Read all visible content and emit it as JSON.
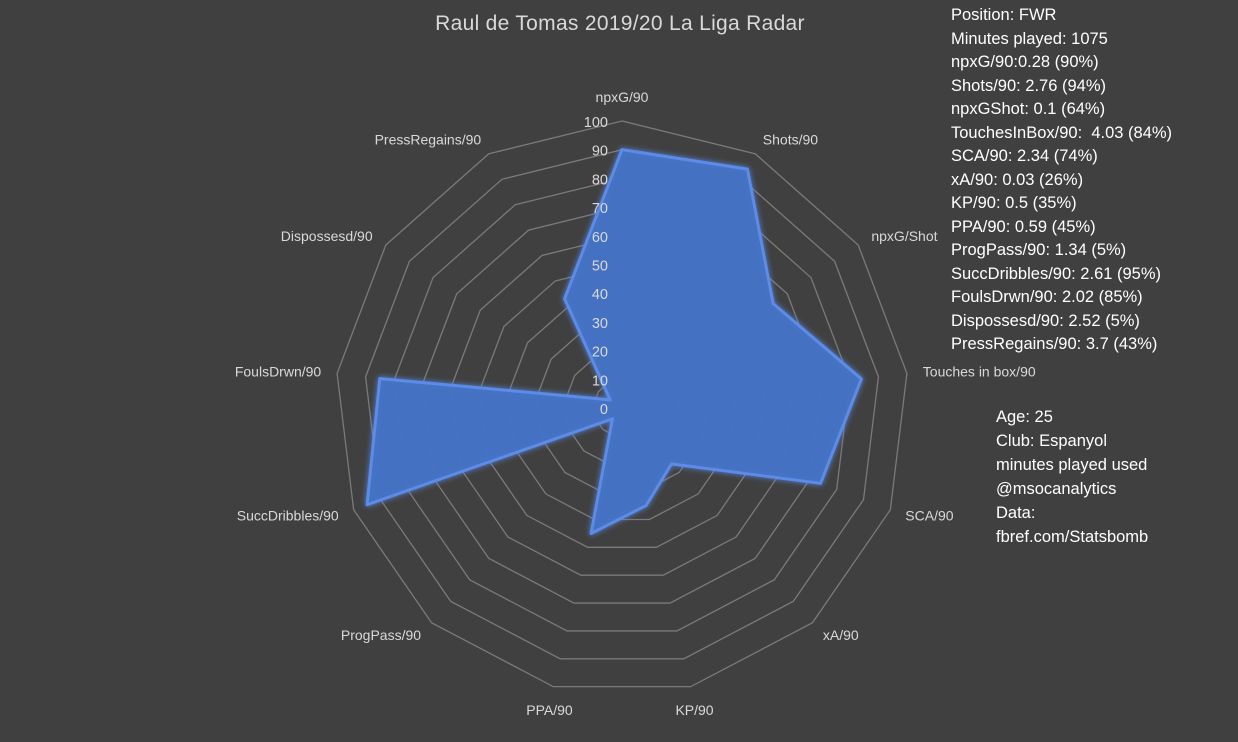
{
  "chart_data": {
    "type": "radar",
    "title": "Raul de Tomas 2019/20 La Liga Radar",
    "axes": [
      "npxG/90",
      "Shots/90",
      "npxG/Shot",
      "Touches in box/90",
      "SCA/90",
      "xA/90",
      "KP/90",
      "PPA/90",
      "ProgPass/90",
      "SuccDribbles/90",
      "FoulsDrwn/90",
      "Dispossesd/90",
      "PressRegains/90"
    ],
    "series": [
      {
        "values": [
          90,
          94,
          64,
          84,
          74,
          26,
          35,
          45,
          5,
          95,
          85,
          5,
          43
        ]
      }
    ],
    "rlim": [
      0,
      100
    ],
    "radial_ticks": [
      "0",
      "10",
      "20",
      "30",
      "40",
      "50",
      "60",
      "70",
      "80",
      "90",
      "100"
    ],
    "grid": true,
    "colors": {
      "fill": "#4472c4",
      "glow": "#5b8be8",
      "grid": "#7a7a7a",
      "label": "#d9d9d9"
    }
  },
  "stats_panel": [
    "Position: FWR",
    "Minutes played: 1075",
    "npxG/90:0.28 (90%)",
    "Shots/90: 2.76 (94%)",
    "npxGShot: 0.1 (64%)",
    "TouchesInBox/90:  4.03 (84%)",
    "SCA/90: 2.34 (74%)",
    "xA/90: 0.03 (26%)",
    "KP/90: 0.5 (35%)",
    "PPA/90: 0.59 (45%)",
    "ProgPass/90: 1.34 (5%)",
    "SuccDribbles/90: 2.61 (95%)",
    "FoulsDrwn/90: 2.02 (85%)",
    "Dispossesd/90: 2.52 (5%)",
    "PressRegains/90: 3.7 (43%)"
  ],
  "info_panel": [
    "Age: 25",
    "Club: Espanyol",
    "minutes played used",
    "@msocanalytics",
    "Data:",
    "fbref.com/Statsbomb"
  ]
}
